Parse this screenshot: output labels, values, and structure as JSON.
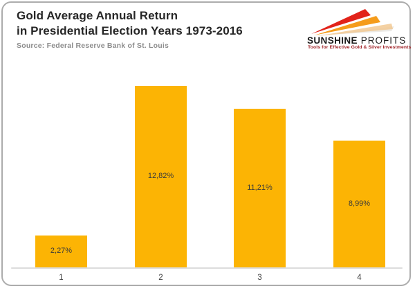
{
  "card": {
    "background": "#FFFFFF",
    "border_color": "#ACACAC"
  },
  "header": {
    "title_line1": "Gold Average Annual Return",
    "title_line2": "in Presidential Election Years 1973-2016",
    "source": "Source: Federal Reserve Bank of St. Louis"
  },
  "logo": {
    "brand_bold": "SUNSHINE",
    "brand_light": " PROFITS",
    "tagline": "Tools for Effective Gold & Silver Investments",
    "colors": {
      "ray_red": "#E2231A",
      "ray_orange": "#F59C1B",
      "ray_pale": "#F2C993",
      "ray_shadow": "#C9C2B8",
      "tagline": "#9E1E23"
    }
  },
  "chart_data": {
    "type": "bar",
    "title": "Gold Average Annual Return in Presidential Election Years 1973-2016",
    "source": "Federal Reserve Bank of St. Louis",
    "categories": [
      "1",
      "2",
      "3",
      "4"
    ],
    "values": [
      2.27,
      12.82,
      11.21,
      8.99
    ],
    "value_labels": [
      "2,27%",
      "12,82%",
      "11,21%",
      "8,99%"
    ],
    "bar_color": "#FCB404",
    "value_label_color": "#3A3A3A",
    "axis_line_color": "#DCDCDC",
    "xlabel": "",
    "ylabel": "",
    "ylim": [
      0,
      14.4
    ],
    "grid": false,
    "legend": false
  }
}
